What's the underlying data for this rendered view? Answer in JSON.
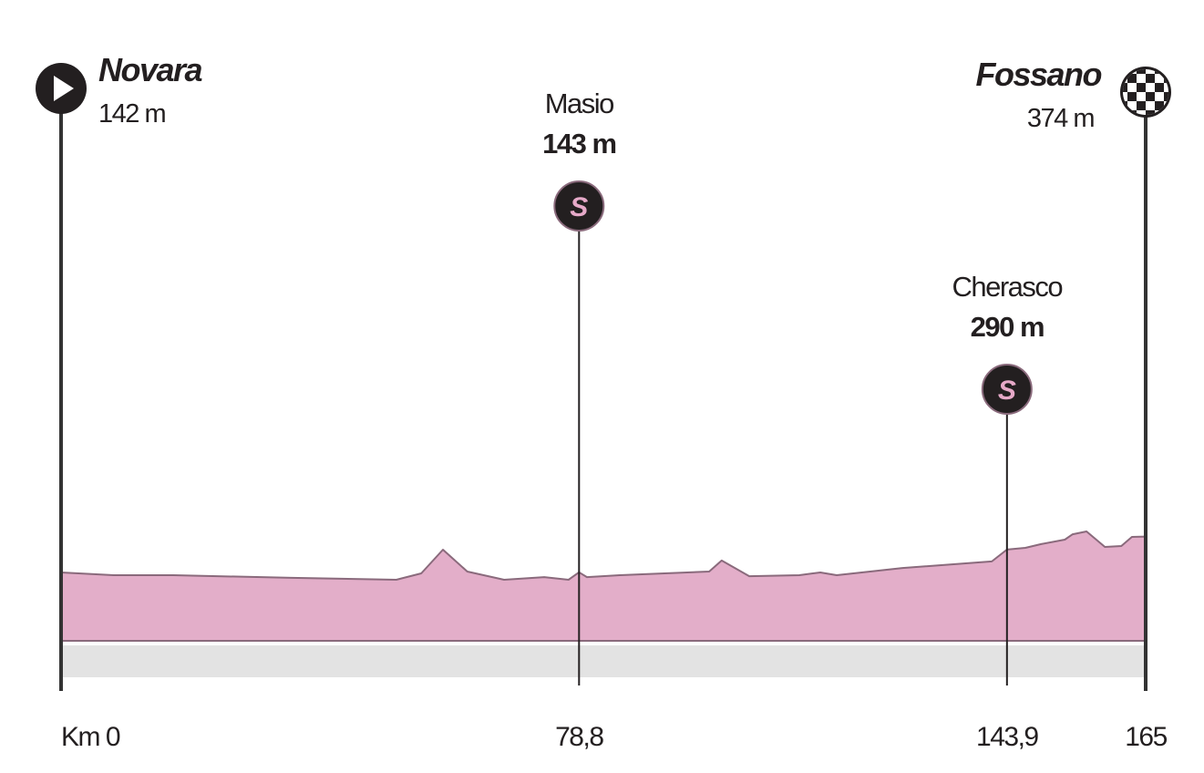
{
  "chart_data": {
    "type": "area",
    "x": [
      0,
      8.0,
      17.1,
      35.1,
      51.0,
      54.8,
      58.1,
      61.8,
      67.4,
      73.5,
      77.2,
      78.8,
      80.0,
      85.0,
      98.6,
      100.5,
      104.7,
      112.3,
      115.5,
      118.0,
      128.0,
      141.6,
      143.9,
      146.7,
      149.1,
      152.7,
      153.9,
      156.0,
      158.8,
      161.3,
      162.9,
      165
    ],
    "values": [
      142,
      124,
      124,
      107,
      95,
      136,
      289,
      148,
      95,
      112,
      95,
      143,
      112,
      124,
      148,
      219,
      118,
      124,
      142,
      124,
      171,
      213,
      290,
      301,
      325,
      354,
      389,
      407,
      307,
      313,
      372,
      374
    ],
    "xlim": [
      0,
      165
    ],
    "ylim": [
      -300,
      3200
    ],
    "color": "#e3aec9",
    "sprint_symbol": "S",
    "places": [
      {
        "name": "Novara",
        "altitude": 142,
        "altitude_label": "142 m",
        "km": 0,
        "km_label": "Km 0",
        "marker": "start"
      },
      {
        "name": "Masio",
        "altitude": 143,
        "altitude_label": "143 m",
        "km": 78.8,
        "km_label": "78,8",
        "marker": "sprint"
      },
      {
        "name": "Cherasco",
        "altitude": 290,
        "altitude_label": "290 m",
        "km": 143.9,
        "km_label": "143,9",
        "marker": "sprint"
      },
      {
        "name": "Fossano",
        "altitude": 374,
        "altitude_label": "374 m",
        "km": 165,
        "km_label": "165",
        "marker": "finish"
      }
    ]
  }
}
